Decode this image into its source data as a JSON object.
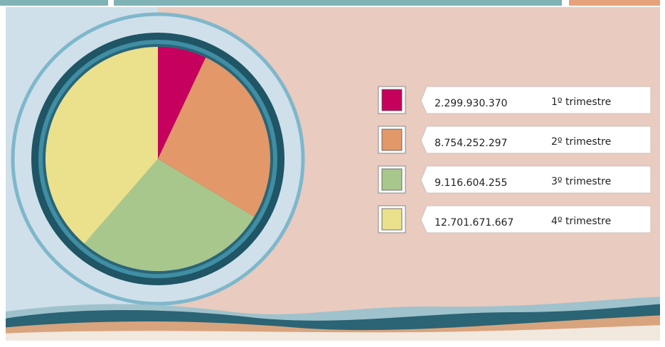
{
  "chart_data": {
    "type": "pie",
    "categories": [
      "1º trimestre",
      "2º trimestre",
      "3º trimestre",
      "4º trimestre"
    ],
    "values": [
      2299930370,
      8754252297,
      9116604255,
      12701671667
    ],
    "value_labels": [
      "2.299.930.370",
      "8.754.252.297",
      "9.116.604.255",
      "12.701.671.667"
    ],
    "colors": [
      "#c6005d",
      "#e29868",
      "#a8c78d",
      "#ebe08c"
    ],
    "start_angle": 90,
    "direction": "clockwise"
  }
}
